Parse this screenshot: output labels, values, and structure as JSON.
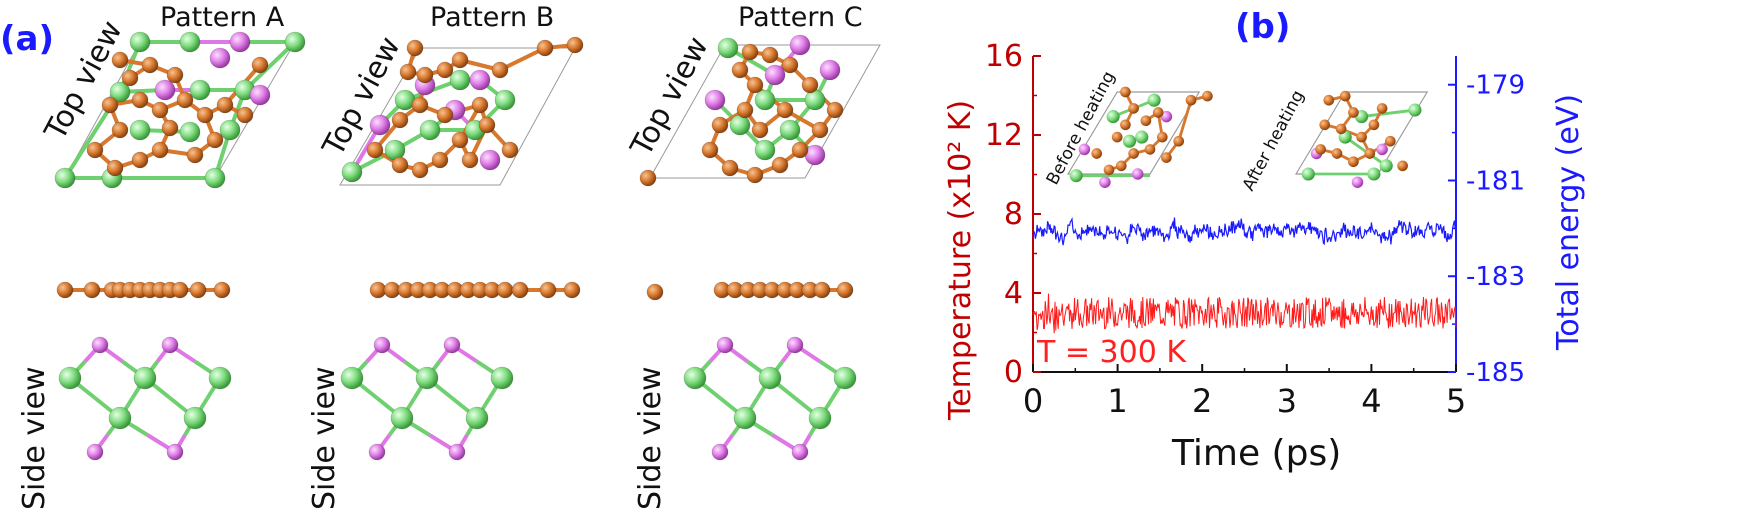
{
  "panel_a": {
    "label": "(a)",
    "view_top": "Top view",
    "view_side": "Side view",
    "patterns": [
      "Pattern A",
      "Pattern B",
      "Pattern C"
    ]
  },
  "panel_b": {
    "label": "(b)",
    "inset_before": "Before heating",
    "inset_after": "After heating",
    "annotation": "T = 300 K"
  },
  "colors": {
    "temperature": "#ff1a1a",
    "energy": "#1a1aff",
    "cu_atom": "#d8782e",
    "green_atom": "#7fdc7f",
    "purple_atom": "#e07ee8"
  },
  "chart_data": {
    "type": "line",
    "xlabel": "Time (ps)",
    "ylabel_left": "Temperature (x10² K)",
    "ylabel_right": "Total energy (eV)",
    "xlim": [
      0,
      5
    ],
    "ylim_left": [
      0,
      16
    ],
    "ylim_right": [
      -185,
      -178.4
    ],
    "xticks": [
      "0",
      "1",
      "2",
      "3",
      "4",
      "5"
    ],
    "yticks_left": [
      "0",
      "4",
      "8",
      "12",
      "16"
    ],
    "yticks_right": [
      "-185",
      "-183",
      "-181",
      "-179"
    ],
    "series": [
      {
        "axis": "left",
        "mean": 3.0,
        "fluctuation": 0.8
      },
      {
        "axis": "right",
        "mean": -182.05,
        "fluctuation": 0.25
      }
    ]
  }
}
